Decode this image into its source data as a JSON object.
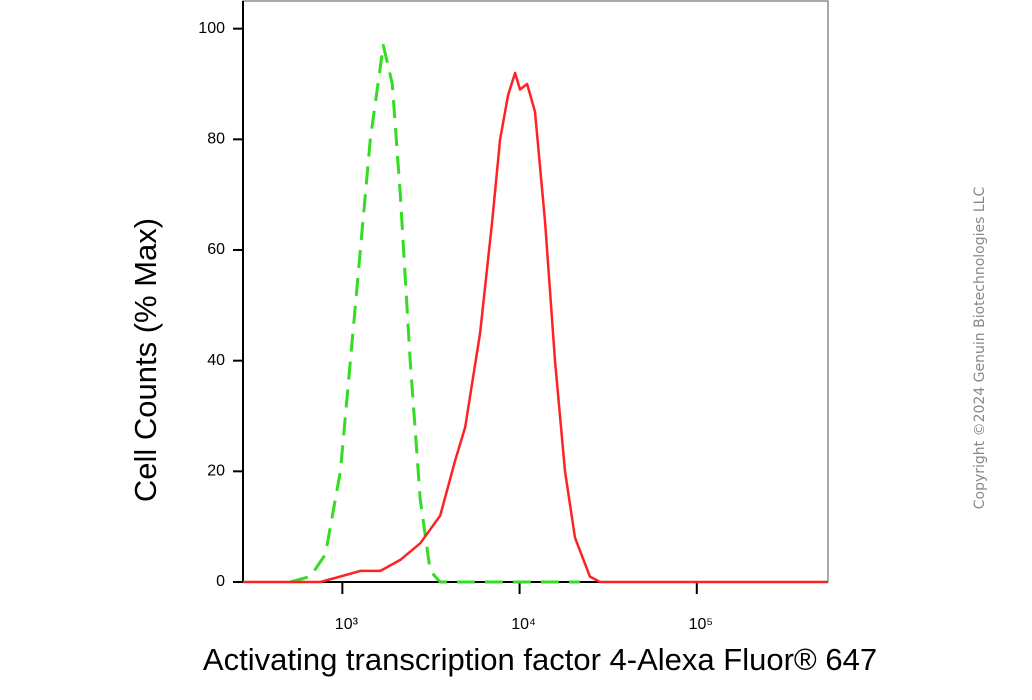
{
  "chart_data": {
    "type": "line",
    "xlabel": "Activating transcription factor 4-Alexa Fluor® 647",
    "ylabel": "Cell Counts (% Max)",
    "annotation": "Copyright ©2024 Genuin Biotechnologies LLC",
    "xscale": "log",
    "xlim": [
      275,
      550000
    ],
    "ylim": [
      0,
      105
    ],
    "xticks": [
      {
        "value": 1000,
        "label": "10³"
      },
      {
        "value": 10000,
        "label": "10⁴"
      },
      {
        "value": 100000,
        "label": "10⁵"
      }
    ],
    "yticks": [
      0,
      20,
      40,
      60,
      80,
      100
    ],
    "series": [
      {
        "color": "#33dd22",
        "dashed": true,
        "x": [
          509,
          660,
          802,
          975,
          1184,
          1438,
          1702,
          1914,
          2123,
          2415,
          2750,
          3130,
          3565,
          21900
        ],
        "values": [
          0,
          1,
          5,
          20,
          50,
          80,
          97,
          90,
          70,
          40,
          15,
          2,
          0,
          0
        ]
      },
      {
        "color": "#ff2222",
        "dashed": false,
        "x": [
          275,
          752,
          975,
          1263,
          1637,
          2123,
          2750,
          3565,
          4333,
          4932,
          5987,
          7000,
          7762,
          8610,
          9440,
          10060,
          11020,
          12220,
          13930,
          15850,
          18040,
          20550,
          24950,
          28430,
          550000
        ],
        "values": [
          0,
          0,
          1,
          2,
          2,
          4,
          7,
          12,
          22,
          28,
          45,
          65,
          80,
          88,
          92,
          89,
          90,
          85,
          65,
          40,
          20,
          8,
          1,
          0,
          0
        ]
      }
    ]
  }
}
